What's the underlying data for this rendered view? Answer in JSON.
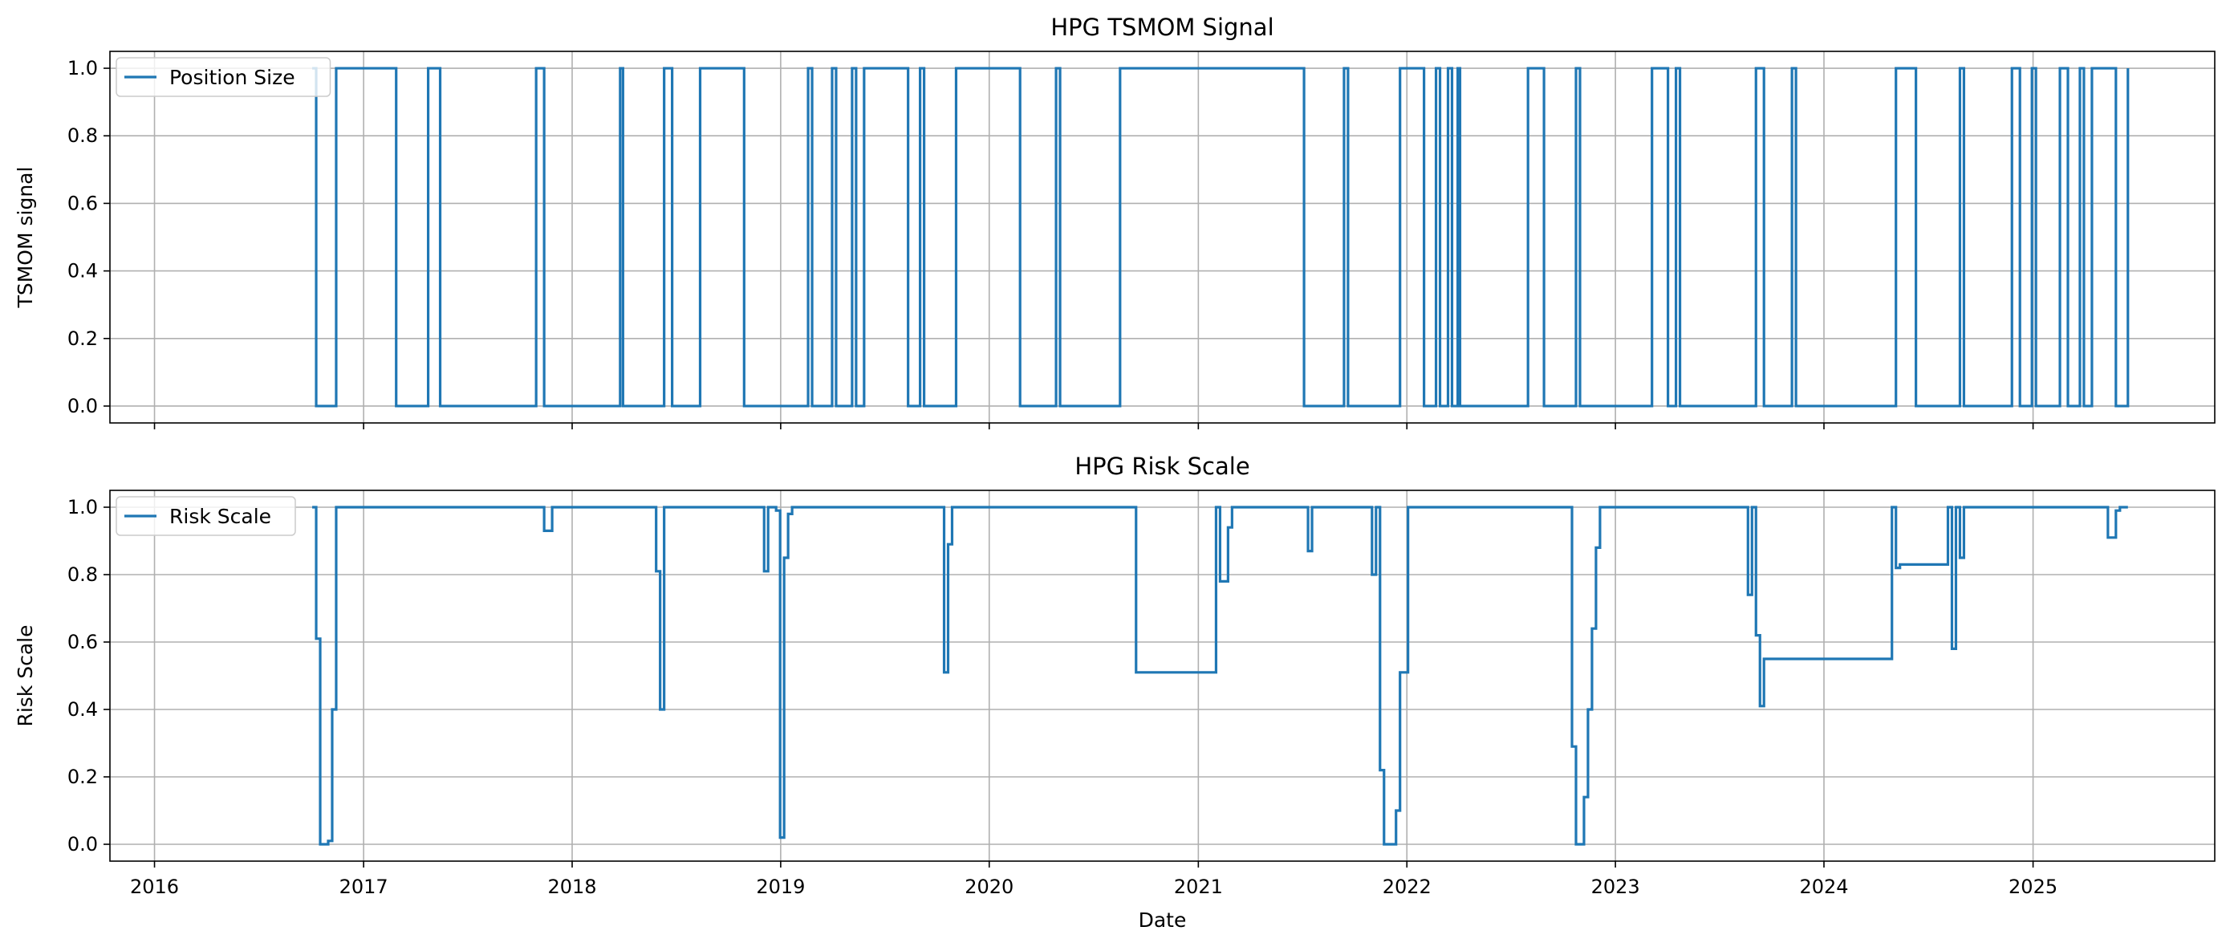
{
  "chart_data": [
    {
      "type": "line",
      "title": "HPG TSMOM Signal",
      "ylabel": "TSMOM signal",
      "xlabel": "",
      "xlim": [
        "2015-10-15",
        "2025-11-15"
      ],
      "ylim": [
        -0.05,
        1.05
      ],
      "yticks": [
        "0.0",
        "0.2",
        "0.4",
        "0.6",
        "0.8",
        "1.0"
      ],
      "xticks": [
        "2016",
        "2017",
        "2018",
        "2019",
        "2020",
        "2021",
        "2022",
        "2023",
        "2024",
        "2025"
      ],
      "show_xtick_labels": false,
      "grid": true,
      "legend": "upper left",
      "series": [
        {
          "name": "Position Size",
          "color": "#1f77b4",
          "drawstyle": "steps-post",
          "x": [
            "2016-10-03",
            "2016-10-10",
            "2016-11-07",
            "2016-11-14",
            "2017-02-27",
            "2017-03-27",
            "2017-04-24",
            "2017-05-15",
            "2017-06-05",
            "2017-10-30",
            "2017-11-13",
            "2018-03-19",
            "2018-03-26",
            "2018-03-31",
            "2018-04-09",
            "2018-06-11",
            "2018-06-25",
            "2018-08-06",
            "2018-08-13",
            "2018-10-29",
            "2018-11-05",
            "2019-02-18",
            "2019-02-25",
            "2019-03-25",
            "2019-04-01",
            "2019-04-08",
            "2019-04-22",
            "2019-05-06",
            "2019-05-13",
            "2019-05-20",
            "2019-05-27",
            "2019-08-12",
            "2019-08-26",
            "2019-09-02",
            "2019-09-09",
            "2019-10-28",
            "2019-11-04",
            "2020-02-24",
            "2020-03-02",
            "2020-04-27",
            "2020-05-04",
            "2020-08-10",
            "2020-08-17",
            "2021-07-05",
            "2021-07-19",
            "2021-09-13",
            "2021-09-20",
            "2021-12-13",
            "2021-12-20",
            "2022-01-31",
            "2022-02-07",
            "2022-02-21",
            "2022-02-28",
            "2022-03-07",
            "2022-03-14",
            "2022-03-21",
            "2022-03-28",
            "2022-03-31",
            "2022-04-04",
            "2022-07-25",
            "2022-08-01",
            "2022-08-29",
            "2022-09-05",
            "2022-10-24",
            "2022-10-31",
            "2023-02-27",
            "2023-03-06",
            "2023-04-03",
            "2023-04-10",
            "2023-04-17",
            "2023-04-24",
            "2023-08-21",
            "2023-09-04",
            "2023-09-18",
            "2023-09-25",
            "2023-11-06",
            "2023-11-13",
            "2024-04-29",
            "2024-05-06",
            "2024-06-10",
            "2024-06-17",
            "2024-08-26",
            "2024-09-02",
            "2024-11-18",
            "2024-11-25",
            "2024-12-09",
            "2024-12-16",
            "2024-12-30",
            "2025-01-06",
            "2025-02-10",
            "2025-02-17",
            "2025-03-03",
            "2025-03-10",
            "2025-03-24",
            "2025-03-31",
            "2025-04-07",
            "2025-04-14",
            "2025-05-26",
            "2025-06-02",
            "2025-06-16"
          ],
          "y": [
            1,
            0,
            0,
            1,
            0,
            0,
            1,
            0,
            0,
            1,
            0,
            0,
            1,
            0,
            0,
            1,
            0,
            0,
            1,
            0,
            0,
            1,
            0,
            0,
            1,
            0,
            0,
            1,
            0,
            0,
            1,
            0,
            0,
            1,
            0,
            0,
            1,
            0,
            0,
            1,
            0,
            0,
            1,
            0,
            0,
            1,
            0,
            0,
            1,
            0,
            0,
            1,
            0,
            0,
            1,
            0,
            0,
            1,
            0,
            0,
            1,
            0,
            0,
            1,
            0,
            0,
            1,
            0,
            0,
            1,
            0,
            0,
            1,
            0,
            0,
            1,
            0,
            0,
            1,
            0,
            0,
            1,
            0,
            0,
            1,
            0,
            0,
            1,
            0,
            0,
            1,
            0,
            0,
            1,
            0,
            0,
            1,
            0,
            0,
            1
          ]
        }
      ]
    },
    {
      "type": "line",
      "title": "HPG Risk Scale",
      "ylabel": "Risk Scale",
      "xlabel": "Date",
      "xlim": [
        "2015-10-15",
        "2025-11-15"
      ],
      "ylim": [
        -0.05,
        1.05
      ],
      "yticks": [
        "0.0",
        "0.2",
        "0.4",
        "0.6",
        "0.8",
        "1.0"
      ],
      "xticks": [
        "2016",
        "2017",
        "2018",
        "2019",
        "2020",
        "2021",
        "2022",
        "2023",
        "2024",
        "2025"
      ],
      "show_xtick_labels": true,
      "grid": true,
      "legend": "upper left",
      "series": [
        {
          "name": "Risk Scale",
          "color": "#1f77b4",
          "drawstyle": "steps-post",
          "x": [
            "2016-10-03",
            "2016-10-10",
            "2016-10-17",
            "2016-10-31",
            "2016-11-07",
            "2016-11-14",
            "2016-11-21",
            "2017-11-06",
            "2017-11-13",
            "2017-11-27",
            "2018-05-21",
            "2018-05-28",
            "2018-06-04",
            "2018-06-11",
            "2018-11-26",
            "2018-12-03",
            "2018-12-10",
            "2018-12-24",
            "2018-12-31",
            "2019-01-07",
            "2019-01-14",
            "2019-01-21",
            "2019-01-28",
            "2019-10-07",
            "2019-10-14",
            "2019-10-21",
            "2019-10-28",
            "2020-09-07",
            "2020-09-14",
            "2021-02-01",
            "2021-02-08",
            "2021-02-22",
            "2021-03-01",
            "2021-07-05",
            "2021-07-12",
            "2021-07-19",
            "2021-10-25",
            "2021-11-01",
            "2021-11-08",
            "2021-11-15",
            "2021-11-22",
            "2021-12-13",
            "2021-12-20",
            "2022-01-03",
            "2022-01-10",
            "2022-10-17",
            "2022-10-24",
            "2022-11-07",
            "2022-11-14",
            "2022-11-21",
            "2022-11-28",
            "2022-12-05",
            "2022-12-12",
            "2023-08-14",
            "2023-08-21",
            "2023-08-28",
            "2023-09-04",
            "2023-09-11",
            "2023-09-18",
            "2024-04-29",
            "2024-05-06",
            "2024-05-13",
            "2024-08-05",
            "2024-08-12",
            "2024-08-19",
            "2024-08-26",
            "2024-09-02",
            "2025-05-05",
            "2025-05-12",
            "2025-05-26",
            "2025-06-02",
            "2025-06-16"
          ],
          "y": [
            1,
            0.61,
            0,
            0.01,
            0.4,
            1,
            1,
            1,
            0.93,
            1,
            1,
            0.81,
            0.4,
            1,
            1,
            0.81,
            1,
            0.99,
            0.02,
            0.85,
            0.98,
            1,
            1,
            1,
            0.51,
            0.89,
            1,
            1,
            0.51,
            1,
            0.78,
            0.94,
            1,
            1,
            0.87,
            1,
            1,
            0.8,
            1,
            0.22,
            0,
            0.1,
            0.51,
            1,
            1,
            0.29,
            0,
            0.14,
            0.4,
            0.64,
            0.88,
            1,
            1,
            1,
            0.74,
            1,
            0.62,
            0.41,
            0.55,
            1,
            0.82,
            0.83,
            1,
            0.58,
            1,
            0.85,
            1,
            1,
            0.91,
            0.99,
            1,
            1
          ]
        }
      ]
    }
  ],
  "colors": {
    "series": "#1f77b4",
    "grid": "#b0b0b0",
    "legend_border": "#cccccc"
  }
}
